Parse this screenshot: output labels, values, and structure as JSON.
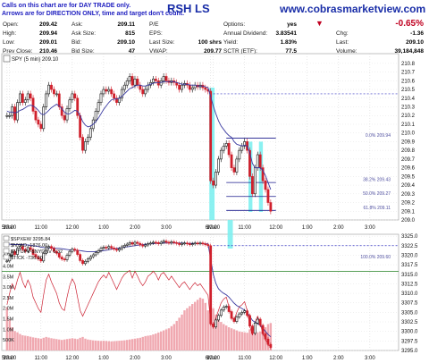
{
  "header": {
    "disclaimer_line1": "Calls on this chart are for DAY TRADE only.",
    "disclaimer_line2": "Arrows are for DIRECTION ONLY, time and target don't count.",
    "symbol_title": "RSH LS",
    "website": "www.cobrasmarketview.com",
    "change_pct": "-0.65%"
  },
  "quote": {
    "col1": [
      {
        "label": "Open:",
        "value": "209.42"
      },
      {
        "label": "High:",
        "value": "209.94"
      },
      {
        "label": "Low:",
        "value": "209.01"
      },
      {
        "label": "Prev Close:",
        "value": "210.46"
      }
    ],
    "col2": [
      {
        "label": "Ask:",
        "value": "209.11"
      },
      {
        "label": "Ask Size:",
        "value": "815"
      },
      {
        "label": "Bid:",
        "value": "209.10"
      },
      {
        "label": "Bid Size:",
        "value": "47"
      }
    ],
    "col3": [
      {
        "label": "P/E",
        "value": ""
      },
      {
        "label": "EPS:",
        "value": ""
      },
      {
        "label": "Last Size:",
        "value": "100 shrs"
      },
      {
        "label": "VWAP:",
        "value": "209.77"
      }
    ],
    "col4": [
      {
        "label": "Options:",
        "value": "yes"
      },
      {
        "label": "Annual Dividend:",
        "value": "3.83541"
      },
      {
        "label": "Yield:",
        "value": "1.83%"
      },
      {
        "label": "SCTR (ETF):",
        "value": "77.5"
      }
    ],
    "col5": [
      {
        "label": "Chg:",
        "value": "-1.36"
      },
      {
        "label": "Last:",
        "value": "209.10"
      },
      {
        "label": "Volume:",
        "value": "39,184,848"
      }
    ]
  },
  "colors": {
    "up": "#111111",
    "down": "#d0202c",
    "ma": "#3a3aa0",
    "highlight": "#7ef0f0",
    "fib_line": "#1a1a8c",
    "fib_label": "#5050a0",
    "dotted": "#3030c0",
    "trend2": "#cc2233",
    "volume": "#f0a8b0",
    "green_line": "#208020"
  },
  "chart_data": [
    {
      "type": "line",
      "title": "SPY (5 min) 209.10",
      "y_axis_ticks": [
        "210.8",
        "210.7",
        "210.6",
        "210.5",
        "210.4",
        "210.3",
        "210.2",
        "210.1",
        "210.0",
        "209.9",
        "209.8",
        "209.7",
        "209.6",
        "209.5",
        "209.4",
        "209.3",
        "209.2",
        "209.1",
        "209.0"
      ],
      "ylim": [
        209.0,
        210.85
      ],
      "x_tick_labels": [
        "5Mar",
        "10:00",
        "11:00",
        "12:00",
        "1:00",
        "2:00",
        "3:00",
        "6Mar",
        "10:00",
        "11:00",
        "12:00",
        "1:00",
        "2:00",
        "3:00"
      ],
      "x_tick_pos": [
        0,
        1,
        13,
        25,
        37,
        49,
        61,
        78,
        79,
        91,
        103,
        115,
        127,
        139
      ],
      "x_range": [
        -2,
        150
      ],
      "series": [
        {
          "values": [
            210.2,
            210.2,
            210.3,
            210.15,
            210.35,
            210.45,
            210.35,
            210.38,
            210.45,
            210.4,
            210.25,
            210.15,
            210.1,
            210.05,
            210.3,
            210.45,
            210.55,
            210.5,
            210.45,
            210.45,
            210.3,
            210.2,
            210.15,
            210.28,
            210.38,
            210.45,
            210.4,
            210.2,
            209.95,
            209.8,
            209.9,
            209.95,
            210.05,
            210.15,
            210.25,
            210.35,
            210.45,
            210.5,
            210.48,
            210.5,
            210.45,
            210.4,
            210.35,
            210.4,
            210.5,
            210.55,
            210.6,
            210.65,
            210.55,
            210.62,
            210.55,
            210.5,
            210.45,
            210.5,
            210.55,
            210.58,
            210.62,
            210.6,
            210.55,
            210.6,
            210.65,
            210.6,
            210.58,
            210.6,
            210.58,
            210.55,
            210.5,
            210.55,
            210.57,
            210.55,
            210.5,
            210.52,
            210.55,
            210.53,
            210.55,
            210.52,
            210.5,
            210.48,
            209.45,
            209.4,
            209.55,
            209.7,
            209.8,
            209.85,
            209.88,
            209.75,
            209.6,
            209.55,
            209.7,
            209.8,
            209.85,
            209.9,
            209.8,
            209.5,
            209.3,
            209.6,
            209.75,
            209.6,
            209.45,
            209.35,
            209.2,
            209.1
          ]
        },
        {
          "values": [
            210.25,
            210.24,
            210.24,
            210.23,
            210.24,
            210.26,
            210.27,
            210.29,
            210.31,
            210.32,
            210.31,
            210.29,
            210.26,
            210.22,
            210.21,
            210.23,
            210.26,
            210.29,
            210.31,
            210.33,
            210.31,
            210.28,
            210.24,
            210.22,
            210.22,
            210.24,
            210.26,
            210.25,
            210.2,
            210.13,
            210.09,
            210.07,
            210.08,
            210.1,
            210.13,
            210.17,
            210.22,
            210.27,
            210.31,
            210.35,
            210.38,
            210.39,
            210.39,
            210.4,
            210.42,
            210.45,
            210.48,
            210.51,
            210.52,
            210.54,
            210.55,
            210.55,
            210.54,
            210.54,
            210.55,
            210.56,
            210.57,
            210.58,
            210.58,
            210.58,
            210.59,
            210.59,
            210.59,
            210.59,
            210.59,
            210.58,
            210.57,
            210.56,
            210.56,
            210.56,
            210.55,
            210.55,
            210.55,
            210.54,
            210.54,
            210.54,
            210.53,
            210.52,
            210.42,
            210.31,
            210.22,
            210.14,
            210.08,
            210.04,
            210.0,
            209.97,
            209.95,
            209.9,
            209.87,
            209.86,
            209.85,
            209.86,
            209.85,
            209.77,
            209.65,
            209.6,
            209.6,
            209.6,
            209.57,
            209.51,
            209.43,
            209.35
          ]
        }
      ],
      "annotations": [
        "0.0% 209.94",
        "38.2% 209.43",
        "50.0% 209.27",
        "61.8% 209.11"
      ],
      "fib_levels": [
        209.94,
        209.43,
        209.27,
        209.11
      ],
      "dotted_level": 210.45,
      "highlights": [
        [
          77.5,
          79.5
        ],
        [
          92.5,
          94
        ],
        [
          96.5,
          98
        ]
      ]
    },
    {
      "type": "line",
      "title": "$SPXEW 3295.84",
      "legend": [
        "$SPXEW 3295.84",
        "$NYAD -1876.00",
        "$NYUPV-$NYDNV 0.32",
        "$TICK -736.00"
      ],
      "y_axis_ticks": [
        "3325.0",
        "3322.5",
        "3320.0",
        "3317.5",
        "3315.0",
        "3312.5",
        "3310.0",
        "3307.5",
        "3305.0",
        "3302.5",
        "3300.0",
        "3297.5",
        "3295.0"
      ],
      "ylim": [
        3295.0,
        3325.5
      ],
      "left_axis_ticks": [
        "4.5M",
        "4.0M",
        "3.5M",
        "3.0M",
        "2.5M",
        "2.0M",
        "1.5M",
        "1.0M",
        "500K"
      ],
      "left_axis_values": [
        4500,
        4000,
        3500,
        3000,
        2500,
        2000,
        1500,
        1000,
        500
      ],
      "left_ylim": [
        0,
        5500
      ],
      "x_tick_labels": [
        "5Mar",
        "10:00",
        "11:00",
        "12:00",
        "1:00",
        "2:00",
        "3:00",
        "6Mar",
        "10:00",
        "11:00",
        "12:00",
        "1:00",
        "2:00",
        "3:00"
      ],
      "x_tick_pos": [
        0,
        1,
        13,
        25,
        37,
        49,
        61,
        78,
        79,
        91,
        103,
        115,
        127,
        139
      ],
      "x_range": [
        -2,
        150
      ],
      "annotations": [
        "100.0% 209.60"
      ],
      "dotted_level": 3322.5,
      "green_level": 3315.8,
      "highlights": [
        [
          84.5,
          86.5
        ]
      ],
      "series": [
        {
          "name": "$SPXEW",
          "values": [
            3318.5,
            3320.0,
            3321.0,
            3320.2,
            3321.8,
            3322.3,
            3321.5,
            3321.0,
            3322.0,
            3321.5,
            3320.2,
            3319.5,
            3319.0,
            3318.5,
            3320.5,
            3322.0,
            3322.3,
            3321.8,
            3321.0,
            3320.5,
            3319.5,
            3319.0,
            3318.8,
            3320.0,
            3321.0,
            3321.6,
            3321.3,
            3320.2,
            3318.6,
            3317.8,
            3318.4,
            3319.0,
            3319.6,
            3320.1,
            3320.7,
            3321.2,
            3321.8,
            3322.1,
            3321.9,
            3322.3,
            3321.9,
            3321.6,
            3321.3,
            3321.7,
            3322.2,
            3322.6,
            3322.9,
            3323.3,
            3322.9,
            3323.4,
            3323.1,
            3322.7,
            3322.4,
            3322.7,
            3323.0,
            3323.2,
            3323.4,
            3323.3,
            3323.0,
            3323.4,
            3323.7,
            3323.4,
            3323.2,
            3323.5,
            3323.3,
            3323.1,
            3322.8,
            3323.1,
            3323.2,
            3323.0,
            3322.8,
            3323.0,
            3323.2,
            3323.1,
            3323.2,
            3323.0,
            3322.8,
            3322.5,
            3302.0,
            3301.2,
            3303.0,
            3304.2,
            3305.6,
            3306.4,
            3306.6,
            3305.2,
            3303.4,
            3302.6,
            3303.8,
            3304.6,
            3305.0,
            3305.4,
            3304.2,
            3301.4,
            3299.5,
            3302.2,
            3303.2,
            3301.6,
            3299.4,
            3298.0,
            3296.6,
            3295.8
          ]
        },
        {
          "name": "trend",
          "values": [
            3323.0,
            3322.9,
            3322.8,
            3322.8,
            3322.8,
            3322.8,
            3322.8,
            3322.7,
            3322.7,
            3322.6,
            3322.5,
            3322.4,
            3322.3,
            3322.1,
            3322.0,
            3322.0,
            3321.9,
            3321.9,
            3321.9,
            3321.8,
            3321.8,
            3321.7,
            3321.6,
            3321.5,
            3321.4,
            3321.4,
            3321.3,
            3321.3,
            3321.2,
            3321.1,
            3321.0,
            3320.9,
            3320.9,
            3320.9,
            3320.9,
            3321.0,
            3321.1,
            3321.2,
            3321.3,
            3321.4,
            3321.6,
            3321.7,
            3321.8,
            3321.9,
            3322.0,
            3322.1,
            3322.2,
            3322.3,
            3322.4,
            3322.5,
            3322.6,
            3322.7,
            3322.8,
            3322.9,
            3322.9,
            3323.0,
            3323.0,
            3323.1,
            3323.1,
            3323.2,
            3323.2,
            3323.2,
            3323.2,
            3323.2,
            3323.2,
            3323.2,
            3323.2,
            3323.2,
            3323.2,
            3323.1,
            3323.1,
            3323.1,
            3323.1,
            3323.1,
            3323.1,
            3323.0,
            3323.0,
            3323.0,
            3319.0,
            3315.0,
            3312.6,
            3311.2,
            3310.5,
            3310.0,
            3309.6,
            3309.0,
            3308.2,
            3307.4,
            3306.8,
            3306.4,
            3306.0,
            3305.6,
            3305.0,
            3304.0,
            3302.9,
            3302.4,
            3302.1,
            3301.6,
            3300.9,
            3300.0,
            3299.2,
            3298.6
          ]
        },
        {
          "name": "breadth",
          "values": [
            3307.0,
            3310.0,
            3312.5,
            3311.0,
            3313.5,
            3315.5,
            3313.0,
            3311.5,
            3313.5,
            3312.0,
            3309.0,
            3307.5,
            3306.0,
            3305.0,
            3309.5,
            3313.5,
            3315.0,
            3313.0,
            3311.5,
            3310.0,
            3307.5,
            3306.0,
            3305.5,
            3309.0,
            3312.0,
            3313.8,
            3312.5,
            3309.0,
            3305.5,
            3304.0,
            3305.5,
            3307.0,
            3308.5,
            3310.0,
            3311.5,
            3313.0,
            3314.0,
            3314.8,
            3314.0,
            3315.5,
            3314.0,
            3312.5,
            3311.0,
            3312.5,
            3314.0,
            3315.0,
            3315.5,
            3316.0,
            3314.0,
            3315.8,
            3314.5,
            3313.0,
            3312.0,
            3313.0,
            3314.5,
            3315.0,
            3315.8,
            3315.0,
            3313.5,
            3315.0,
            3315.5,
            3314.5,
            3313.5,
            3314.5,
            3313.5,
            3312.5,
            3311.5,
            3312.5,
            3313.0,
            3312.0,
            3311.0,
            3312.0,
            3312.8,
            3312.0,
            3312.5,
            3311.5,
            3310.5,
            3309.5,
            3302.5,
            3301.0,
            3303.5,
            3305.5,
            3307.5,
            3308.5,
            3309.0,
            3306.5,
            3304.0,
            3303.0,
            3305.0,
            3306.5,
            3307.0,
            3307.8,
            3305.5,
            3301.5,
            3299.0,
            3302.5,
            3304.0,
            3302.0,
            3299.5,
            3298.0,
            3296.5,
            3296.0
          ]
        },
        {
          "name": "volume",
          "values": [
            2050,
            1480,
            1100,
            920,
            860,
            780,
            720,
            700,
            680,
            650,
            620,
            600,
            580,
            560,
            600,
            640,
            610,
            580,
            560,
            540,
            520,
            500,
            520,
            540,
            560,
            580,
            560,
            540,
            600,
            640,
            560,
            520,
            500,
            480,
            470,
            460,
            450,
            460,
            450,
            440,
            430,
            440,
            450,
            460,
            470,
            480,
            500,
            520,
            540,
            560,
            580,
            600,
            640,
            680,
            700,
            720,
            760,
            800,
            850,
            900,
            950,
            1000,
            1050,
            1150,
            1250,
            1400,
            1550,
            1700,
            1900,
            2000,
            2100,
            2200,
            2300,
            2400,
            2500,
            2450,
            2250,
            1900,
            2400,
            2000,
            1700,
            1500,
            1350,
            1250,
            1180,
            1100,
            1050,
            1000,
            950,
            900,
            880,
            860,
            840,
            1000,
            1180,
            900,
            860,
            900,
            1000,
            1100,
            1250,
            1300
          ]
        }
      ]
    }
  ]
}
